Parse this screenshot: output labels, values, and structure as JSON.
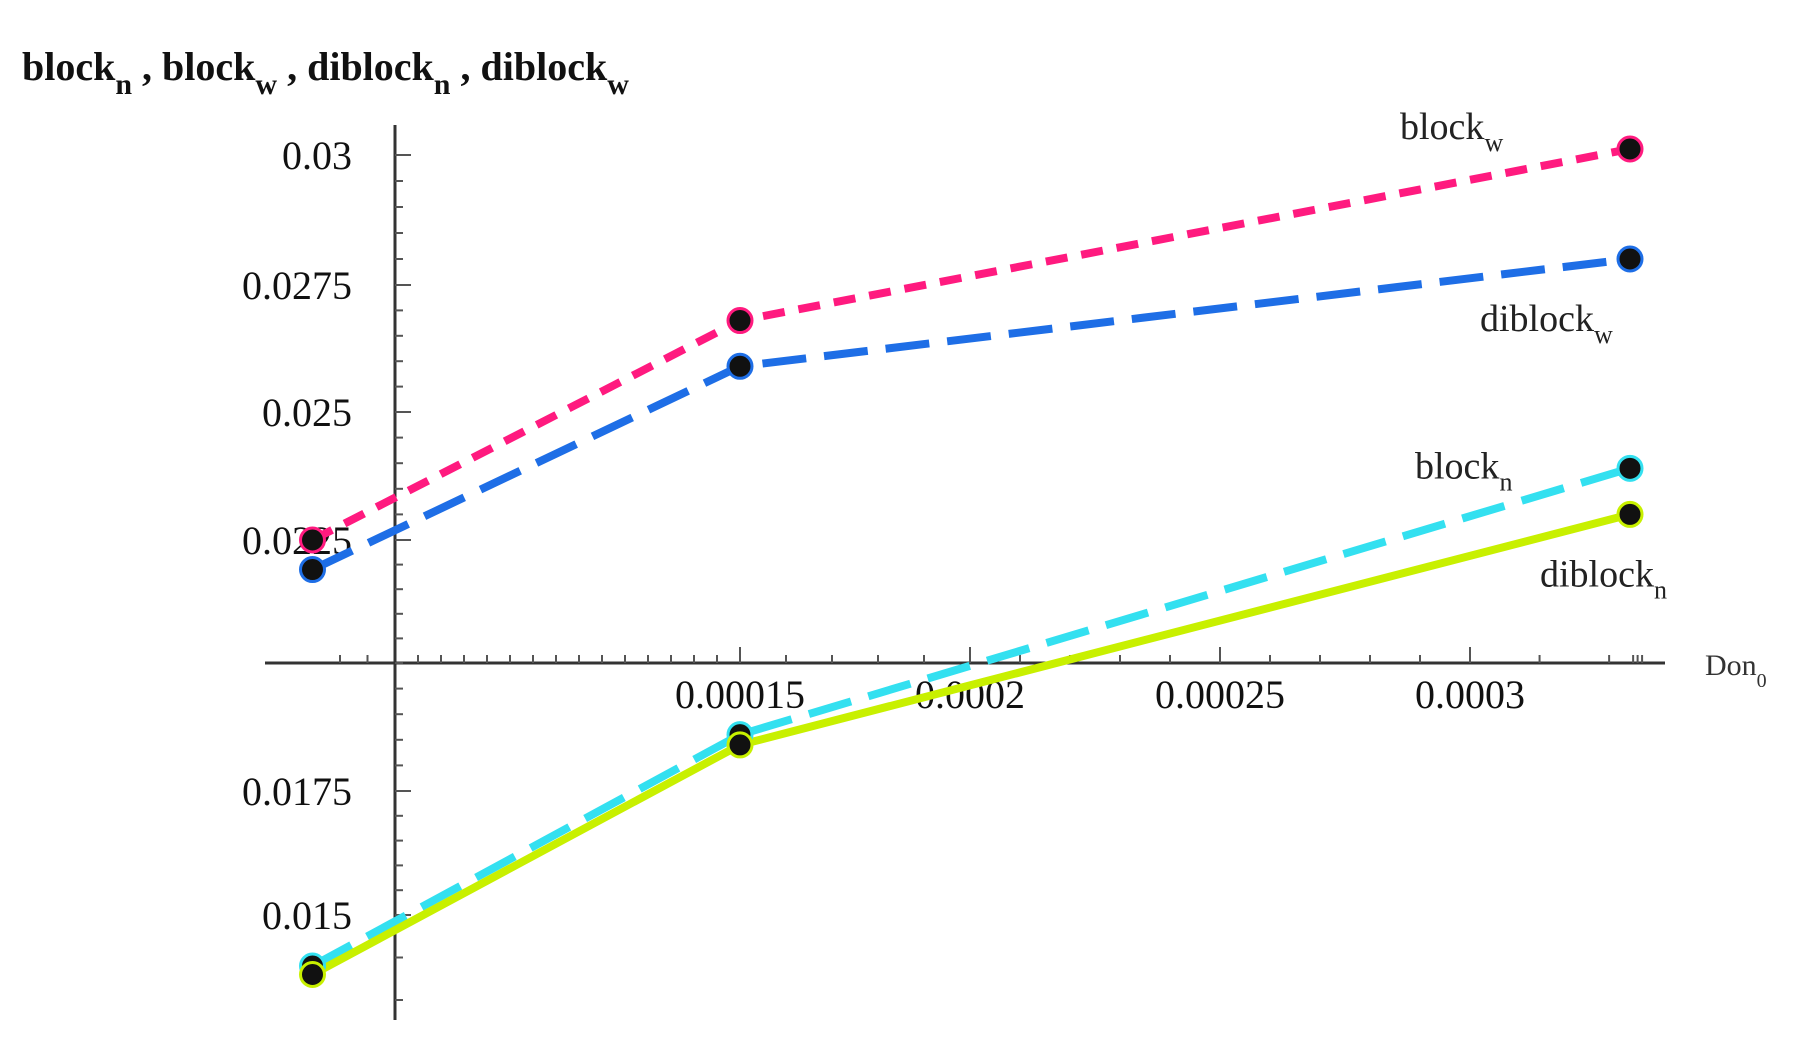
{
  "chart_data": {
    "type": "line",
    "title": [
      {
        "base": "block",
        "sub": "n"
      },
      {
        "base": "block",
        "sub": "w"
      },
      {
        "base": "diblock",
        "sub": "n"
      },
      {
        "base": "diblock",
        "sub": "w"
      }
    ],
    "xlabel": {
      "base": "Don",
      "sub": "0"
    },
    "ylabel": "",
    "xlim": [
      -3.75e-05,
      0.00039
    ],
    "ylim": [
      0.01344,
      0.02719
    ],
    "axis_origin": [
      0,
      0.02
    ],
    "x_ticks": {
      "values": [
        0.00015,
        0.0002,
        0.00025,
        0.0003
      ],
      "labels": [
        "0.00015",
        "0.0002",
        "0.00025",
        "0.0003"
      ]
    },
    "y_ticks": {
      "values": [
        0.015,
        0.0175,
        0.0225,
        0.025,
        0.0275,
        0.03
      ],
      "labels": [
        "0.015",
        "0.0175",
        "0.0225",
        "0.025",
        "0.0275",
        "0.03"
      ]
    },
    "grid": false,
    "legend": "none",
    "series": [
      {
        "name": {
          "base": "block",
          "sub": "w"
        },
        "x": [
          -3e-05,
          0.00015,
          0.000323
        ],
        "y": [
          0.0225,
          0.0268,
          0.0301
        ],
        "color": "#ff1a7f",
        "dash": "short-dash"
      },
      {
        "name": {
          "base": "diblock",
          "sub": "w"
        },
        "x": [
          -3e-05,
          0.00015,
          0.000323
        ],
        "y": [
          0.0219,
          0.0259,
          0.028
        ],
        "color": "#1e6ee6",
        "dash": "long-dash"
      },
      {
        "name": {
          "base": "block",
          "sub": "n"
        },
        "x": [
          -3e-05,
          0.00015,
          0.000323
        ],
        "y": [
          0.0144,
          0.0186,
          0.0239
        ],
        "color": "#33e0f0",
        "dash": "long-dash"
      },
      {
        "name": {
          "base": "diblock",
          "sub": "n"
        },
        "x": [
          -3e-05,
          0.00015,
          0.000323
        ],
        "y": [
          0.0143,
          0.0184,
          0.023
        ],
        "color": "#c8f000",
        "dash": "solid"
      }
    ]
  }
}
